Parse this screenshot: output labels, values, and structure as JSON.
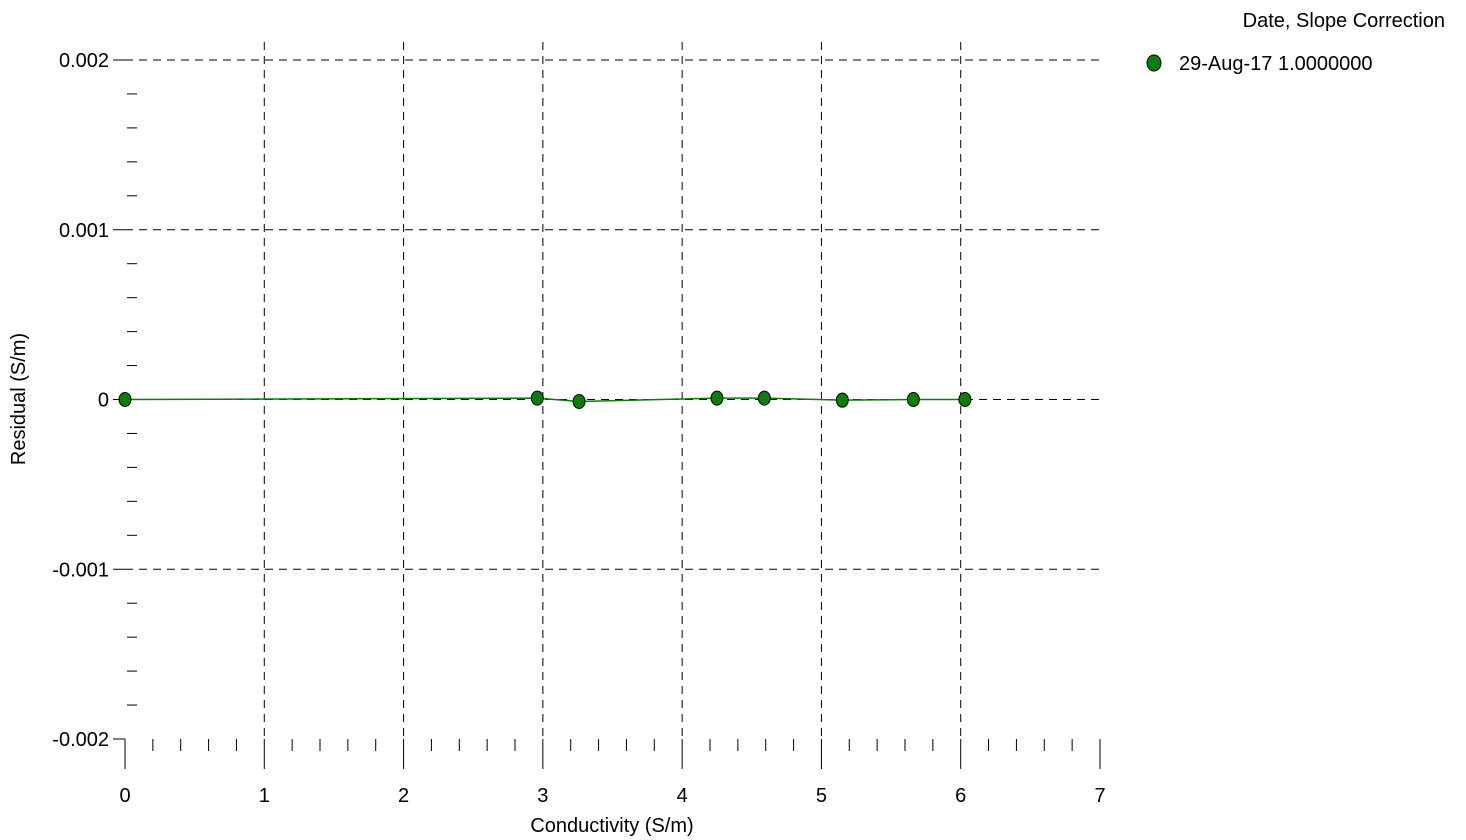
{
  "chart_data": {
    "type": "scatter",
    "xlabel": "Conductivity (S/m)",
    "ylabel": "Residual (S/m)",
    "xlim": [
      0,
      7
    ],
    "ylim": [
      -0.002,
      0.002
    ],
    "x_ticks": [
      0,
      1,
      2,
      3,
      4,
      5,
      6,
      7
    ],
    "x_tick_labels": [
      "0",
      "1",
      "2",
      "3",
      "4",
      "5",
      "6",
      "7"
    ],
    "y_ticks": [
      0.002,
      0.001,
      0,
      -0.001,
      -0.002
    ],
    "y_tick_labels": [
      "0.002",
      "0.001",
      "0",
      "-0.001",
      "-0.002"
    ],
    "grid": true,
    "legend": {
      "title": "Date, Slope Correction",
      "placement": "top-right"
    },
    "series": [
      {
        "name": "29-Aug-17 1.0000000",
        "color": "#0b7d0b",
        "marker": "circle",
        "line": true,
        "x": [
          0.0,
          2.96,
          3.26,
          4.25,
          4.59,
          5.15,
          5.66,
          6.03
        ],
        "y": [
          0.0,
          8e-06,
          -1.2e-05,
          8e-06,
          8e-06,
          -4e-06,
          0.0,
          0.0
        ]
      }
    ]
  }
}
